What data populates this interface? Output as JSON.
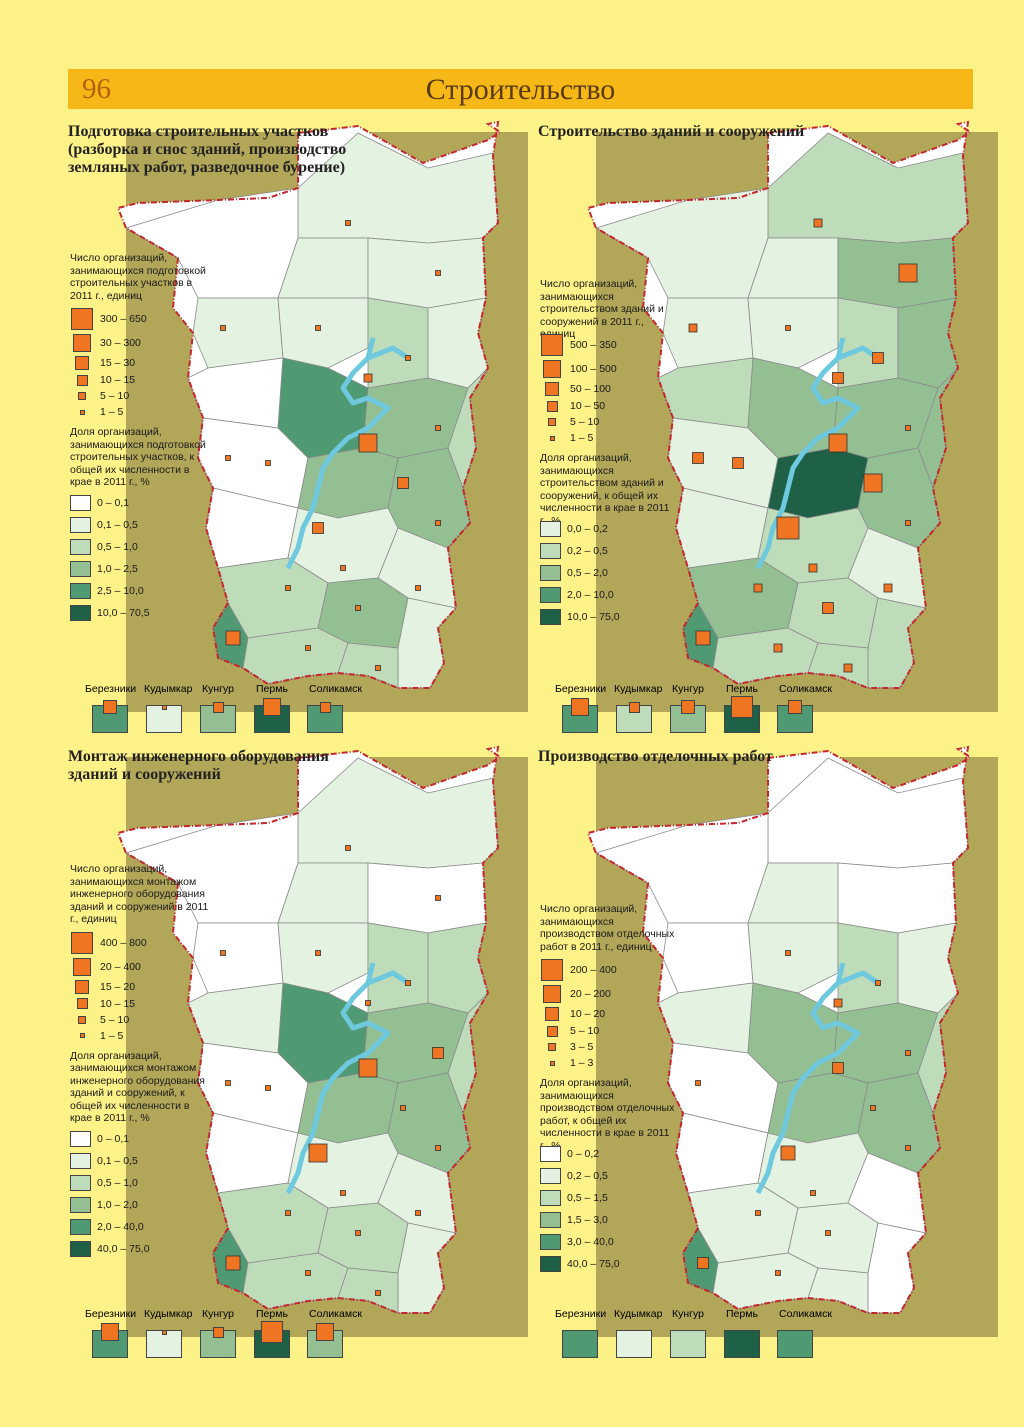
{
  "header": {
    "page_number": "96",
    "title": "Строительство"
  },
  "colors": {
    "page_bg": "#fdf287",
    "header_bg": "#f6b817",
    "panel_bg": "#b2a659",
    "marker": "#ef7522",
    "border_red": "#c2282e",
    "water": "#6ec9df",
    "c0": "#ffffff",
    "c1": "#e4f2e1",
    "c2": "#bfdcba",
    "c3": "#93bf93",
    "c4": "#4f9a72",
    "c5": "#1e6146"
  },
  "cities": [
    "Березники",
    "Кудымкар",
    "Кунгур",
    "Пермь",
    "Соликамск"
  ],
  "panels": [
    {
      "title": "Подготовка строительных участков (разборка и снос зданий, производство земляных работ, разведочное бурение)",
      "legend_size_title": "Число организаций, занимающихся подготовкой строительных участков в 2011 г., единиц",
      "size_classes": [
        "300 – 650",
        "30 – 300",
        "15 – 30",
        "10 – 15",
        "5 – 10",
        "1 – 5"
      ],
      "legend_color_title": "Доля организаций, занимающихся подготовкой строительных участков, к общей их численности в крае в 2011 г., %",
      "color_classes": [
        "0 – 0,1",
        "0,1 – 0,5",
        "0,5 – 1,0",
        "1,0 – 2,5",
        "2,5 – 10,0",
        "10,0 – 70,5"
      ],
      "city_color_class": [
        4,
        1,
        3,
        5,
        4
      ],
      "city_size_class": [
        2,
        5,
        3,
        1,
        3
      ]
    },
    {
      "title": "Строительство зданий и сооружений",
      "legend_size_title": "Число организаций, занимающихся строительством зданий и сооружений в 2011 г., единиц",
      "size_classes": [
        "500 – 350",
        "100 – 500",
        "50 – 100",
        "10 – 50",
        "5 – 10",
        "1 – 5"
      ],
      "legend_color_title": "Доля организаций, занимающихся строительством зданий и сооружений, к общей их численности в крае в 2011 г., %",
      "color_classes": [
        "0,0 – 0,2",
        "0,2 – 0,5",
        "0,5 – 2,0",
        "2,0 – 10,0",
        "10,0 – 75,0"
      ],
      "city_color_class": [
        3,
        1,
        2,
        4,
        3
      ],
      "city_size_class": [
        1,
        3,
        2,
        0,
        2
      ]
    },
    {
      "title": "Монтаж инженерного оборудования зданий и сооружений",
      "legend_size_title": "Число организаций, занимающихся монтажом инженерного оборудования зданий и сооружений в 2011 г., единиц",
      "size_classes": [
        "400 – 800",
        "20 – 400",
        "15 – 20",
        "10 – 15",
        "5 – 10",
        "1 – 5"
      ],
      "legend_color_title": "Доля организаций, занимающихся монтажом инженерного оборудования зданий и сооружений, к общей их численности в крае в 2011 г., %",
      "color_classes": [
        "0 – 0,1",
        "0,1 – 0,5",
        "0,5 – 1,0",
        "1,0 – 2,0",
        "2,0 – 40,0",
        "40,0 – 75,0"
      ],
      "city_color_class": [
        4,
        1,
        3,
        5,
        3
      ],
      "city_size_class": [
        1,
        5,
        3,
        0,
        1
      ]
    },
    {
      "title": "Производство отделочных работ",
      "legend_size_title": "Число организаций, занимающихся производством отделочных работ в 2011 г., единиц",
      "size_classes": [
        "200 – 400",
        "20 – 200",
        "10 – 20",
        "5 – 10",
        "3 – 5",
        "1 – 3"
      ],
      "legend_color_title": "Доля организаций, занимающихся производством отделочных работ, к общей их численности в крае в 2011 г., %",
      "color_classes": [
        "0 – 0,2",
        "0,2 – 0,5",
        "0,5 – 1,5",
        "1,5 – 3,0",
        "3,0 – 40,0",
        "40,0 – 75,0"
      ],
      "city_color_class": [
        4,
        1,
        2,
        5,
        4
      ],
      "city_size_class": [
        -1,
        -1,
        -1,
        -1,
        -1
      ]
    }
  ]
}
